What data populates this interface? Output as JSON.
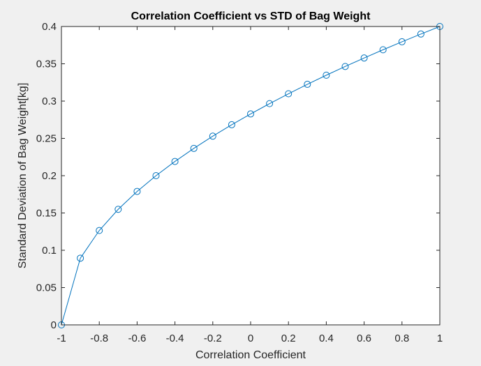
{
  "chart_data": {
    "type": "line",
    "title": "Correlation Coefficient vs STD of Bag Weight",
    "xlabel": "Correlation Coefficient",
    "ylabel": "Standard Deviation of Bag Weight[kg]",
    "xlim": [
      -1,
      1
    ],
    "ylim": [
      0,
      0.4
    ],
    "grid": false,
    "marker": "circle",
    "colors": {
      "line": "#0072bd",
      "axes": "#262626",
      "plot_background": "#ffffff",
      "figure_background": "#f0f0f0"
    },
    "x_ticks": [
      -1,
      -0.8,
      -0.6,
      -0.4,
      -0.2,
      0,
      0.2,
      0.4,
      0.6,
      0.8,
      1
    ],
    "x_tick_labels": [
      "-1",
      "-0.8",
      "-0.6",
      "-0.4",
      "-0.2",
      "0",
      "0.2",
      "0.4",
      "0.6",
      "0.8",
      "1"
    ],
    "y_ticks": [
      0,
      0.05,
      0.1,
      0.15,
      0.2,
      0.25,
      0.3,
      0.35,
      0.4
    ],
    "y_tick_labels": [
      "0",
      "0.05",
      "0.1",
      "0.15",
      "0.2",
      "0.25",
      "0.3",
      "0.35",
      "0.4"
    ],
    "series": [
      {
        "x": [
          -1,
          -0.9,
          -0.8,
          -0.7,
          -0.6,
          -0.5,
          -0.4,
          -0.3,
          -0.2,
          -0.1,
          0,
          0.1,
          0.2,
          0.3,
          0.4,
          0.5,
          0.6,
          0.7,
          0.8,
          0.9,
          1
        ],
        "y": [
          0,
          0.0894,
          0.1265,
          0.1549,
          0.1789,
          0.2,
          0.2191,
          0.2366,
          0.253,
          0.2683,
          0.2828,
          0.2966,
          0.3098,
          0.3225,
          0.3347,
          0.3464,
          0.3578,
          0.3688,
          0.3795,
          0.3899,
          0.4
        ]
      }
    ]
  }
}
